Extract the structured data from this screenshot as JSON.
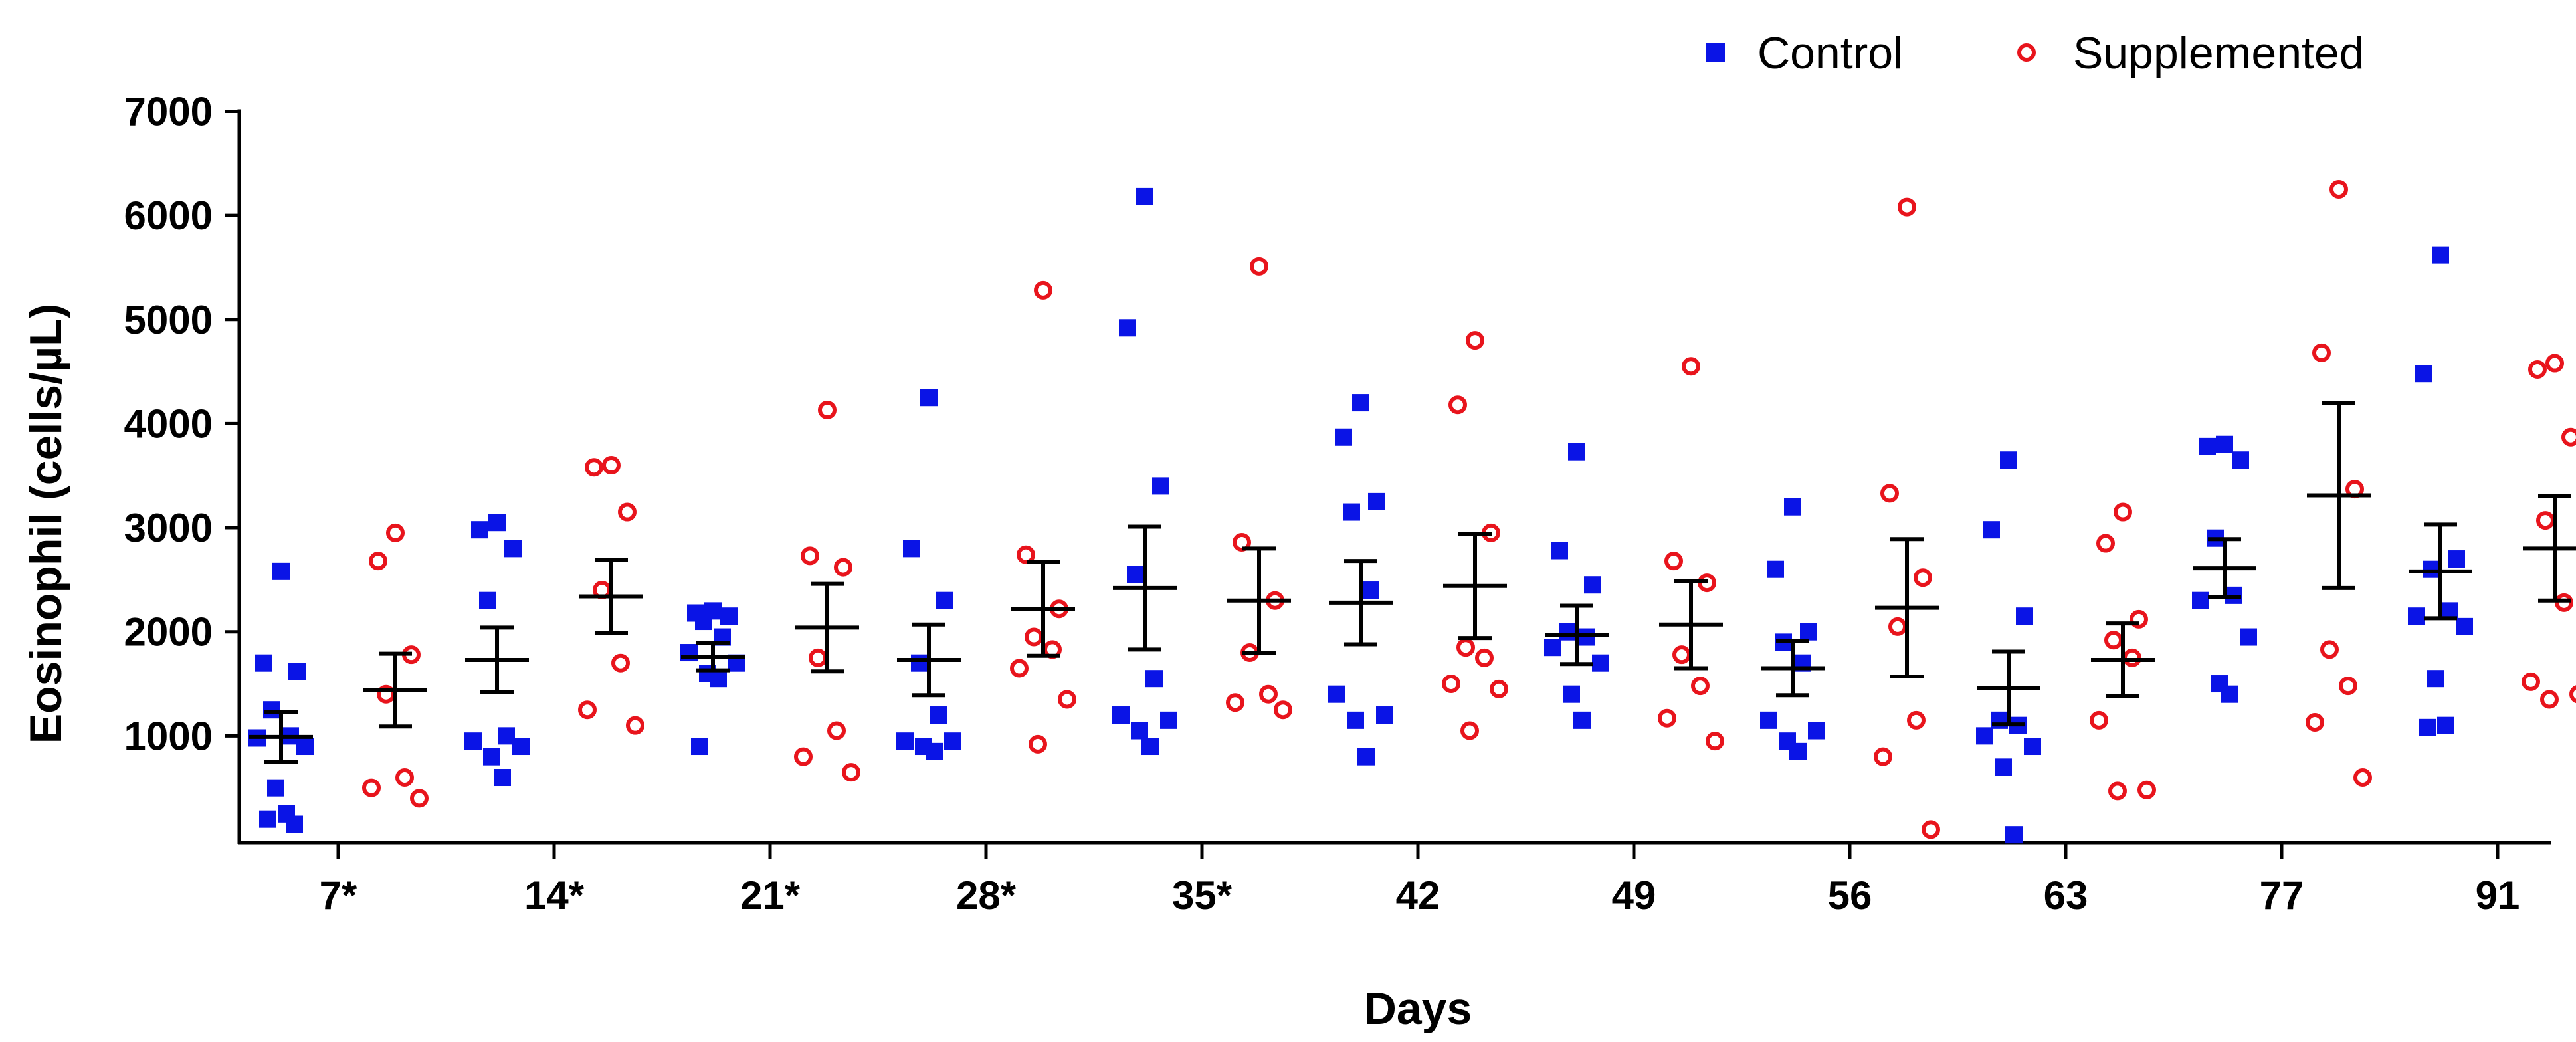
{
  "chart_data": {
    "type": "scatter",
    "title": "",
    "xlabel": "Days",
    "ylabel": "Eosinophil (cells/µL)",
    "categories": [
      "7*",
      "14*",
      "21*",
      "28*",
      "35*",
      "42",
      "49",
      "56",
      "63",
      "77",
      "91"
    ],
    "ylim": [
      0,
      7000
    ],
    "yticks": [
      1000,
      2000,
      3000,
      4000,
      5000,
      6000,
      7000
    ],
    "legend_position": "top-right",
    "series": [
      {
        "name": "Control",
        "color": "#0a14e6",
        "marker": "filled-square",
        "points": [
          [
            2580,
            1700,
            1620,
            1250,
            1000,
            980,
            900,
            500,
            250,
            200,
            150
          ],
          [
            3050,
            2980,
            2800,
            2300,
            1000,
            950,
            900,
            800,
            600
          ],
          [
            2200,
            2180,
            2150,
            2100,
            1950,
            1800,
            1700,
            1600,
            1550,
            900
          ],
          [
            4250,
            2800,
            2300,
            1700,
            1200,
            950,
            950,
            900,
            850
          ],
          [
            6180,
            4920,
            3400,
            2550,
            1550,
            1200,
            1150,
            1050,
            900
          ],
          [
            4200,
            3870,
            3250,
            3150,
            2400,
            1400,
            1200,
            1150,
            800
          ],
          [
            3730,
            2780,
            2450,
            2000,
            1950,
            1850,
            1700,
            1400,
            1150
          ],
          [
            3200,
            2600,
            2000,
            1900,
            1700,
            1150,
            1050,
            950,
            850
          ],
          [
            3650,
            2980,
            2150,
            1150,
            1100,
            1000,
            900,
            700,
            50
          ],
          [
            3800,
            3780,
            3650,
            2900,
            2350,
            2300,
            1950,
            1500,
            1400
          ],
          [
            5620,
            4480,
            2700,
            2600,
            2200,
            2150,
            2050,
            1550,
            1100,
            1080
          ]
        ],
        "mean": [
          990,
          1730,
          1760,
          1730,
          2420,
          2280,
          1970,
          1650,
          1460,
          2610,
          2580
        ],
        "sem": [
          240,
          310,
          130,
          340,
          590,
          400,
          280,
          260,
          350,
          280,
          450
        ]
      },
      {
        "name": "Supplemented",
        "color": "#e8141c",
        "marker": "open-circle",
        "points": [
          [
            2950,
            2680,
            1780,
            1400,
            600,
            500,
            400
          ],
          [
            3600,
            3580,
            3150,
            2400,
            1700,
            1250,
            1100
          ],
          [
            4130,
            2730,
            2620,
            1750,
            1050,
            800,
            650
          ],
          [
            5280,
            2740,
            2220,
            1950,
            1830,
            1650,
            1350,
            920
          ],
          [
            5510,
            2860,
            2300,
            1800,
            1400,
            1320,
            1250
          ],
          [
            4800,
            4180,
            2950,
            1850,
            1750,
            1500,
            1450,
            1050
          ],
          [
            4550,
            2680,
            2470,
            1780,
            1480,
            1170,
            950
          ],
          [
            6080,
            3330,
            2520,
            2050,
            1150,
            800,
            100
          ],
          [
            3150,
            2850,
            2120,
            1920,
            1750,
            1150,
            480,
            470
          ],
          [
            6250,
            4680,
            3370,
            1830,
            1480,
            1130,
            600
          ],
          [
            4580,
            4520,
            3870,
            3070,
            2280,
            1520,
            1400,
            1350
          ]
        ],
        "mean": [
          1440,
          2340,
          2040,
          2220,
          2300,
          2440,
          2070,
          2230,
          1730,
          3310,
          2800
        ],
        "sem": [
          350,
          350,
          420,
          450,
          500,
          500,
          420,
          660,
          350,
          890,
          500
        ]
      }
    ]
  }
}
